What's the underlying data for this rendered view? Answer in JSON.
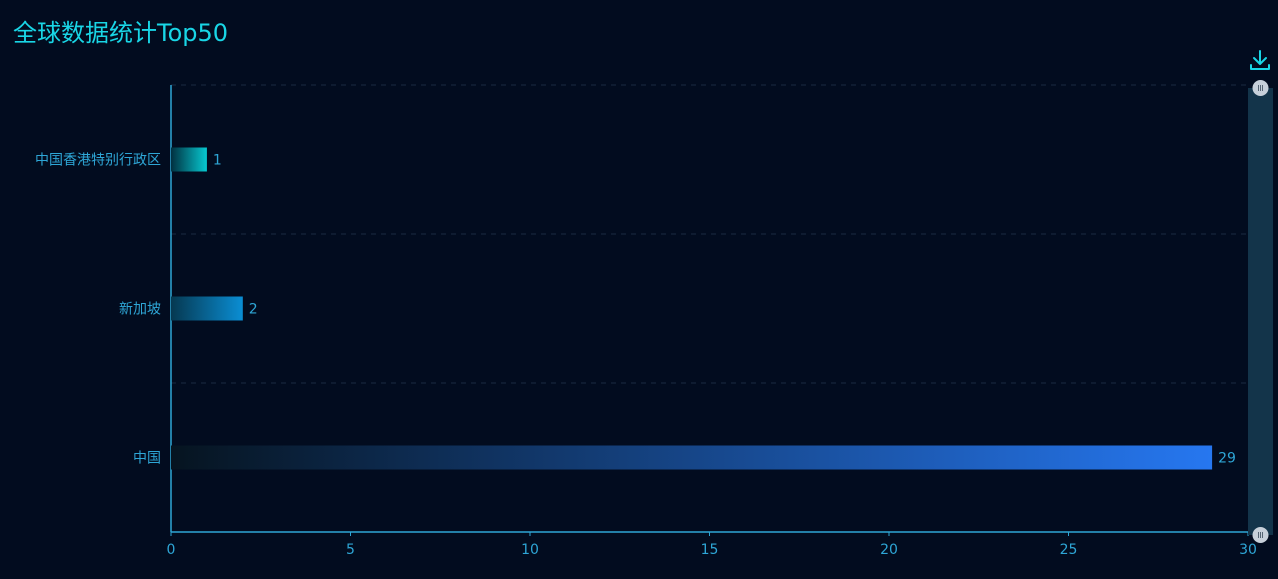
{
  "title": "全球数据统计Top50",
  "toolbar": {
    "download_icon": "download-icon"
  },
  "colors": {
    "background": "#020c1f",
    "title": "#19d6e6",
    "axis": "#2ea6d6",
    "grid": "#1b2a40",
    "scrollbar_track": "#13344a",
    "scrollbar_handle": "#c7d0da"
  },
  "chart_data": {
    "type": "bar",
    "orientation": "horizontal",
    "categories": [
      "中国香港特别行政区",
      "新加坡",
      "中国"
    ],
    "values": [
      1,
      2,
      29
    ],
    "bar_colors": [
      [
        "#013040",
        "#07c9d1"
      ],
      [
        "#063850",
        "#0a8ed4"
      ],
      [
        "#061420",
        "#2677f0"
      ]
    ],
    "xlim": [
      0,
      30
    ],
    "xticks": [
      "0",
      "5",
      "10",
      "15",
      "20",
      "25",
      "30"
    ],
    "grid": true,
    "data_labels": true,
    "scrollbar": "vertical-right"
  }
}
